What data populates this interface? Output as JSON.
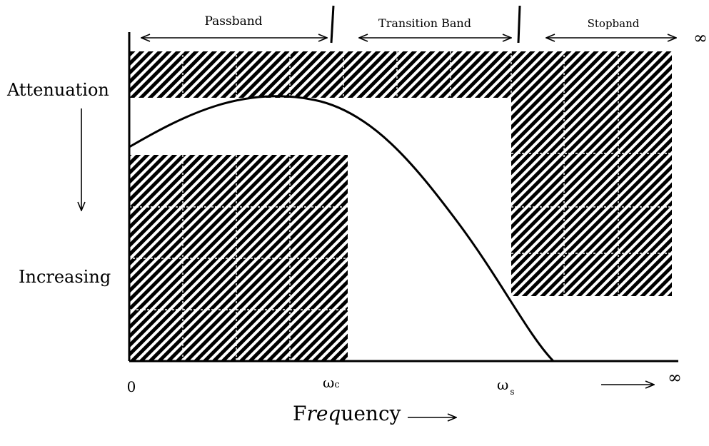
{
  "bands": {
    "passband": "Passband",
    "transition": "Transition Band",
    "stopband": "Stopband"
  },
  "axis": {
    "y_label_top": "Attenuation",
    "y_label_bottom": "Increasing",
    "x_label_prefix": "F",
    "x_label_italic": "req",
    "x_label_suffix": "uency",
    "x_zero": "0",
    "x_cutoff_symbol": "ω",
    "x_cutoff_sub": "c",
    "x_stop_symbol": "ω",
    "x_stop_sub": "s",
    "x_infinity": "∞",
    "top_infinity": "∞"
  },
  "colors": {
    "ink": "#000000",
    "background": "#ffffff",
    "hatch_gridline": "#ffffff"
  }
}
